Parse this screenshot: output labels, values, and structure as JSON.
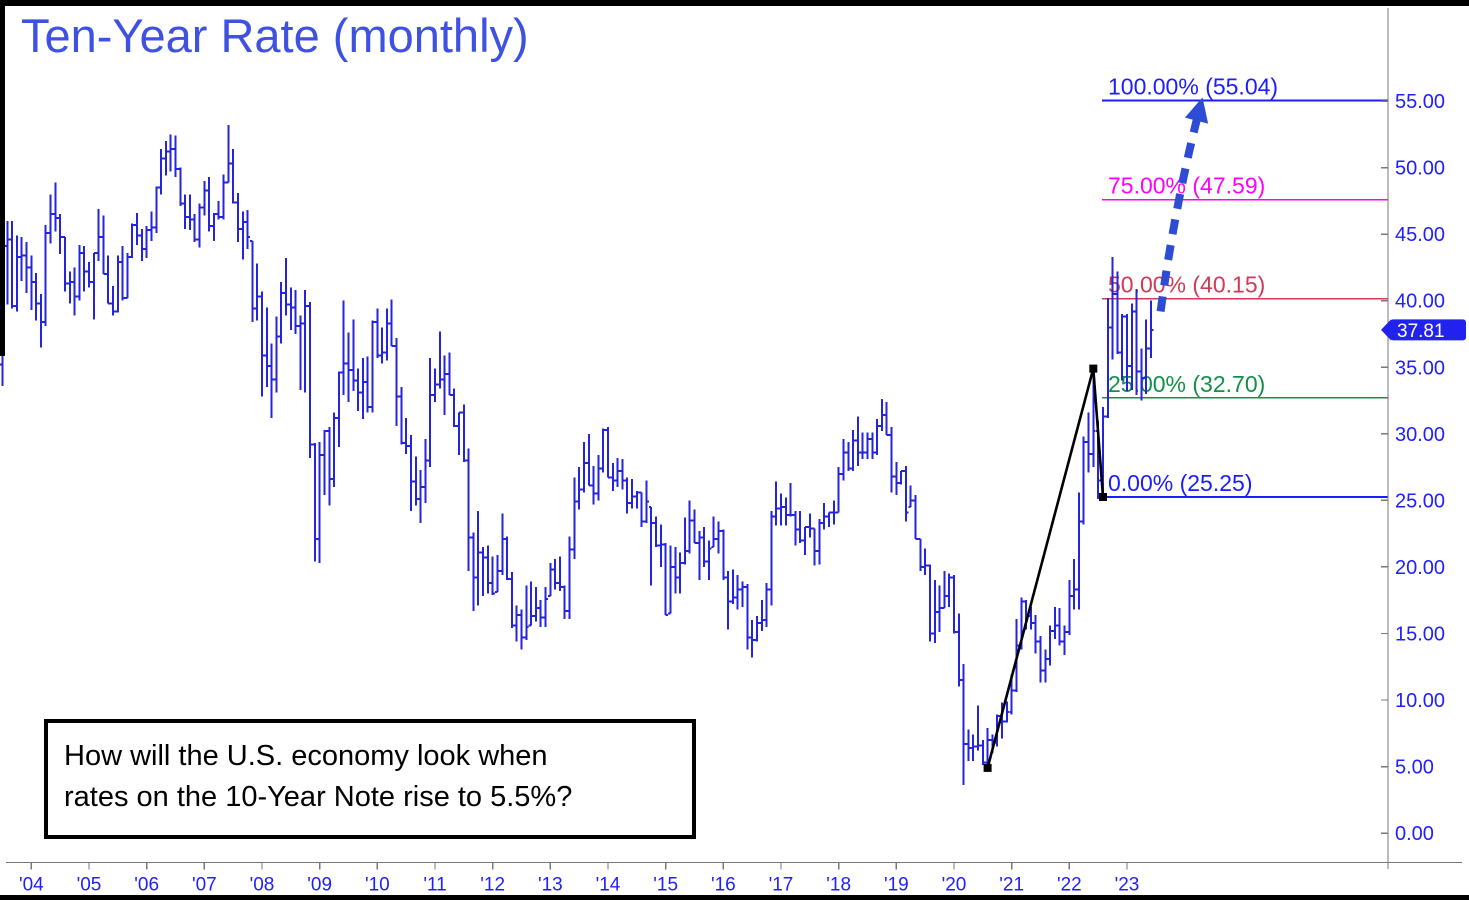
{
  "window": {
    "title": "Ten-Year Rate (monthly)"
  },
  "annotation_box": {
    "line1": "How will the U.S. economy look when",
    "line2": "rates on the 10-Year Note rise to 5.5%?"
  },
  "last_price_tag": "37.81",
  "colors": {
    "title_blue": "#3f51e1",
    "bar_blue": "#2424dd",
    "axis_gray": "#787878",
    "axis_label_blue": "#2020ff",
    "fib_blue": "#1c1cff",
    "fib_magenta": "#ff00ff",
    "fib_crimson": "#d03a56",
    "fib_green": "#129047",
    "arrow_blue": "#2e4bd4",
    "tag_bg": "#2222ee",
    "tag_text": "#ffffff",
    "trend_black": "#000000"
  },
  "chart_data": {
    "type": "ohlc-bar",
    "title": "Ten-Year Rate (monthly)",
    "xlabel": "",
    "ylabel": "",
    "frequency": "monthly",
    "start": {
      "year": 2003,
      "month": 7
    },
    "units": "yield x 10",
    "ylim": [
      0,
      55
    ],
    "grid": false,
    "x_tick_years": [
      2004,
      2005,
      2006,
      2007,
      2008,
      2009,
      2010,
      2011,
      2012,
      2013,
      2014,
      2015,
      2016,
      2017,
      2018,
      2019,
      2020,
      2021,
      2022,
      2023
    ],
    "x_tick_labels": [
      "'04",
      "'05",
      "'06",
      "'07",
      "'08",
      "'09",
      "'10",
      "'11",
      "'12",
      "'13",
      "'14",
      "'15",
      "'16",
      "'17",
      "'18",
      "'19",
      "'20",
      "'21",
      "'22",
      "'23"
    ],
    "y_ticks": [
      0,
      5,
      10,
      15,
      20,
      25,
      30,
      35,
      40,
      45,
      50,
      55
    ],
    "y_tick_labels": [
      "0.00",
      "5.00",
      "10.00",
      "15.00",
      "20.00",
      "25.00",
      "30.00",
      "35.00",
      "40.00",
      "45.00",
      "50.00",
      "55.00"
    ],
    "last_price": 37.81,
    "first_open": 35.2,
    "bars_hlc": [
      [
        44.9,
        33.6,
        44.1
      ],
      [
        46.0,
        39.7,
        44.6
      ],
      [
        46.0,
        39.4,
        39.6
      ],
      [
        44.9,
        39.2,
        43.3
      ],
      [
        44.8,
        41.5,
        43.4
      ],
      [
        44.4,
        40.6,
        42.5
      ],
      [
        43.4,
        39.3,
        41.4
      ],
      [
        42.1,
        38.5,
        39.8
      ],
      [
        40.5,
        36.5,
        38.4
      ],
      [
        45.7,
        38.1,
        45.1
      ],
      [
        48.0,
        44.3,
        46.5
      ],
      [
        48.9,
        45.2,
        46.2
      ],
      [
        46.5,
        43.5,
        44.8
      ],
      [
        44.8,
        40.7,
        41.3
      ],
      [
        42.2,
        39.8,
        41.4
      ],
      [
        42.5,
        38.9,
        40.3
      ],
      [
        44.2,
        40.0,
        43.6
      ],
      [
        44.1,
        40.7,
        42.2
      ],
      [
        42.9,
        41.0,
        41.4
      ],
      [
        43.6,
        38.6,
        43.6
      ],
      [
        46.9,
        43.0,
        44.8
      ],
      [
        46.4,
        42.0,
        42.0
      ],
      [
        43.4,
        39.8,
        39.8
      ],
      [
        41.1,
        38.9,
        39.2
      ],
      [
        43.4,
        39.1,
        42.9
      ],
      [
        44.1,
        40.0,
        40.2
      ],
      [
        43.6,
        40.2,
        43.3
      ],
      [
        45.8,
        43.2,
        45.7
      ],
      [
        46.6,
        44.2,
        44.9
      ],
      [
        45.4,
        43.0,
        43.9
      ],
      [
        45.6,
        43.2,
        45.3
      ],
      [
        46.7,
        44.5,
        45.5
      ],
      [
        48.6,
        45.1,
        48.5
      ],
      [
        51.4,
        48.0,
        50.7
      ],
      [
        52.0,
        49.4,
        51.2
      ],
      [
        52.5,
        49.7,
        51.4
      ],
      [
        52.4,
        49.3,
        49.9
      ],
      [
        50.0,
        47.1,
        47.3
      ],
      [
        48.0,
        45.4,
        46.3
      ],
      [
        48.0,
        45.3,
        46.1
      ],
      [
        46.5,
        44.4,
        44.6
      ],
      [
        47.3,
        44.0,
        47.0
      ],
      [
        49.0,
        46.4,
        48.3
      ],
      [
        49.3,
        45.2,
        45.6
      ],
      [
        46.6,
        44.5,
        46.5
      ],
      [
        47.5,
        46.1,
        46.3
      ],
      [
        49.5,
        46.1,
        48.9
      ],
      [
        53.2,
        48.9,
        50.3
      ],
      [
        51.4,
        47.3,
        47.4
      ],
      [
        48.1,
        44.4,
        45.4
      ],
      [
        46.7,
        43.1,
        45.9
      ],
      [
        46.8,
        43.9,
        44.8
      ],
      [
        44.5,
        38.4,
        39.4
      ],
      [
        42.8,
        38.5,
        40.3
      ],
      [
        40.7,
        32.8,
        35.9
      ],
      [
        39.5,
        33.5,
        35.1
      ],
      [
        36.8,
        31.2,
        34.1
      ],
      [
        38.8,
        33.1,
        37.3
      ],
      [
        41.4,
        36.8,
        40.6
      ],
      [
        43.2,
        38.9,
        39.7
      ],
      [
        41.0,
        37.8,
        39.5
      ],
      [
        40.8,
        37.5,
        38.1
      ],
      [
        38.9,
        33.3,
        38.3
      ],
      [
        40.8,
        33.1,
        39.6
      ],
      [
        39.9,
        28.2,
        29.2
      ],
      [
        29.3,
        20.4,
        22.1
      ],
      [
        29.4,
        20.3,
        28.4
      ],
      [
        30.3,
        25.4,
        30.2
      ],
      [
        30.5,
        24.6,
        26.6
      ],
      [
        31.6,
        26.0,
        31.2
      ],
      [
        34.7,
        29.0,
        34.6
      ],
      [
        40.0,
        32.9,
        35.3
      ],
      [
        37.6,
        32.4,
        34.8
      ],
      [
        38.6,
        33.2,
        34.0
      ],
      [
        34.9,
        31.7,
        33.1
      ],
      [
        35.7,
        31.1,
        33.9
      ],
      [
        35.8,
        31.6,
        32.0
      ],
      [
        38.5,
        31.6,
        38.4
      ],
      [
        39.4,
        35.7,
        35.9
      ],
      [
        38.0,
        35.3,
        36.1
      ],
      [
        39.4,
        35.5,
        38.3
      ],
      [
        40.1,
        36.6,
        36.6
      ],
      [
        37.2,
        30.6,
        32.8
      ],
      [
        33.5,
        29.2,
        29.3
      ],
      [
        31.2,
        28.5,
        29.1
      ],
      [
        29.9,
        24.2,
        26.4
      ],
      [
        28.3,
        24.6,
        25.1
      ],
      [
        27.3,
        23.3,
        26.0
      ],
      [
        29.6,
        24.8,
        28.0
      ],
      [
        35.7,
        27.5,
        32.9
      ],
      [
        34.9,
        32.4,
        33.7
      ],
      [
        37.7,
        33.4,
        34.1
      ],
      [
        35.9,
        31.4,
        34.5
      ],
      [
        36.1,
        32.9,
        32.9
      ],
      [
        33.4,
        30.5,
        30.6
      ],
      [
        31.6,
        28.4,
        31.6
      ],
      [
        32.2,
        27.9,
        28.0
      ],
      [
        28.9,
        19.7,
        22.2
      ],
      [
        22.6,
        16.7,
        19.2
      ],
      [
        24.2,
        17.1,
        21.1
      ],
      [
        21.5,
        17.8,
        20.7
      ],
      [
        21.6,
        18.0,
        18.8
      ],
      [
        20.8,
        17.9,
        18.0
      ],
      [
        20.9,
        18.1,
        19.7
      ],
      [
        24.0,
        19.4,
        22.1
      ],
      [
        22.3,
        19.0,
        19.1
      ],
      [
        19.6,
        15.4,
        15.6
      ],
      [
        17.1,
        14.4,
        16.4
      ],
      [
        16.8,
        13.8,
        14.7
      ],
      [
        18.6,
        14.5,
        15.5
      ],
      [
        18.9,
        15.6,
        16.3
      ],
      [
        18.5,
        15.9,
        16.9
      ],
      [
        17.5,
        15.5,
        16.2
      ],
      [
        18.5,
        15.5,
        17.6
      ],
      [
        20.3,
        17.8,
        19.8
      ],
      [
        20.6,
        18.3,
        18.8
      ],
      [
        20.8,
        18.2,
        18.5
      ],
      [
        18.6,
        16.1,
        16.7
      ],
      [
        22.3,
        16.1,
        21.3
      ],
      [
        26.7,
        20.6,
        24.9
      ],
      [
        27.5,
        24.3,
        25.8
      ],
      [
        29.4,
        25.6,
        27.8
      ],
      [
        30.0,
        26.1,
        26.1
      ],
      [
        27.6,
        24.7,
        25.5
      ],
      [
        28.4,
        25.0,
        27.4
      ],
      [
        30.4,
        27.1,
        30.3
      ],
      [
        30.5,
        26.7,
        26.7
      ],
      [
        27.8,
        25.7,
        26.5
      ],
      [
        28.2,
        26.0,
        27.2
      ],
      [
        28.1,
        25.8,
        26.5
      ],
      [
        26.7,
        24.0,
        24.8
      ],
      [
        26.6,
        24.4,
        25.3
      ],
      [
        25.7,
        24.4,
        25.6
      ],
      [
        25.6,
        23.0,
        23.4
      ],
      [
        26.5,
        23.3,
        24.9
      ],
      [
        24.5,
        18.6,
        23.3
      ],
      [
        23.8,
        21.5,
        21.6
      ],
      [
        23.2,
        20.0,
        21.7
      ],
      [
        21.8,
        16.4,
        16.4
      ],
      [
        21.6,
        16.5,
        20.0
      ],
      [
        21.5,
        18.0,
        19.2
      ],
      [
        21.1,
        18.0,
        20.3
      ],
      [
        23.7,
        20.2,
        21.2
      ],
      [
        25.0,
        21.0,
        23.5
      ],
      [
        24.3,
        21.8,
        21.8
      ],
      [
        22.7,
        19.0,
        22.2
      ],
      [
        23.0,
        20.0,
        20.4
      ],
      [
        22.0,
        19.0,
        21.4
      ],
      [
        23.8,
        21.5,
        22.1
      ],
      [
        23.4,
        21.0,
        22.7
      ],
      [
        22.8,
        19.0,
        19.2
      ],
      [
        19.7,
        15.3,
        17.4
      ],
      [
        19.8,
        17.2,
        17.7
      ],
      [
        19.4,
        16.8,
        18.3
      ],
      [
        18.9,
        17.0,
        18.5
      ],
      [
        18.7,
        13.8,
        14.7
      ],
      [
        16.0,
        13.2,
        14.5
      ],
      [
        16.3,
        14.4,
        15.8
      ],
      [
        17.5,
        15.2,
        16.0
      ],
      [
        18.8,
        15.5,
        18.3
      ],
      [
        24.2,
        17.1,
        23.8
      ],
      [
        26.4,
        23.1,
        24.4
      ],
      [
        25.5,
        23.1,
        24.5
      ],
      [
        25.2,
        23.1,
        23.9
      ],
      [
        26.3,
        23.8,
        23.9
      ],
      [
        24.2,
        21.6,
        22.8
      ],
      [
        24.2,
        21.8,
        22.0
      ],
      [
        23.0,
        20.9,
        23.0
      ],
      [
        24.0,
        22.2,
        22.9
      ],
      [
        22.9,
        20.1,
        21.2
      ],
      [
        23.6,
        20.2,
        23.3
      ],
      [
        24.8,
        22.8,
        23.8
      ],
      [
        24.1,
        23.0,
        24.1
      ],
      [
        25.0,
        23.2,
        24.1
      ],
      [
        27.5,
        24.1,
        27.0
      ],
      [
        29.6,
        26.5,
        28.6
      ],
      [
        29.4,
        27.2,
        27.4
      ],
      [
        30.3,
        27.2,
        29.5
      ],
      [
        31.3,
        27.6,
        28.6
      ],
      [
        30.1,
        28.1,
        28.6
      ],
      [
        30.1,
        28.1,
        29.6
      ],
      [
        30.1,
        28.1,
        28.6
      ],
      [
        31.1,
        28.4,
        30.6
      ],
      [
        32.6,
        30.2,
        31.4
      ],
      [
        32.4,
        29.9,
        29.9
      ],
      [
        30.5,
        25.6,
        26.8
      ],
      [
        27.9,
        25.4,
        26.3
      ],
      [
        27.2,
        26.2,
        27.2
      ],
      [
        27.6,
        23.4,
        24.1
      ],
      [
        26.1,
        24.5,
        25.0
      ],
      [
        25.4,
        22.1,
        22.1
      ],
      [
        22.1,
        19.7,
        20.0
      ],
      [
        21.4,
        19.4,
        20.1
      ],
      [
        20.2,
        14.4,
        15.0
      ],
      [
        19.0,
        14.3,
        16.6
      ],
      [
        18.6,
        15.1,
        16.9
      ],
      [
        19.7,
        16.9,
        17.8
      ],
      [
        19.5,
        17.0,
        19.2
      ],
      [
        19.4,
        15.0,
        15.1
      ],
      [
        16.5,
        11.0,
        11.5
      ],
      [
        12.7,
        3.6,
        6.7
      ],
      [
        7.8,
        5.4,
        6.4
      ],
      [
        7.4,
        5.4,
        6.5
      ],
      [
        9.6,
        6.2,
        6.6
      ],
      [
        7.0,
        5.1,
        5.3
      ],
      [
        7.9,
        4.8,
        7.0
      ],
      [
        7.4,
        6.0,
        6.8
      ],
      [
        8.9,
        6.5,
        8.8
      ],
      [
        9.8,
        7.1,
        8.4
      ],
      [
        9.9,
        8.3,
        9.1
      ],
      [
        11.9,
        8.9,
        10.7
      ],
      [
        16.1,
        10.6,
        14.1
      ],
      [
        17.7,
        13.8,
        17.4
      ],
      [
        17.5,
        15.3,
        16.3
      ],
      [
        17.0,
        15.3,
        15.8
      ],
      [
        16.4,
        13.5,
        14.4
      ],
      [
        14.8,
        11.3,
        12.2
      ],
      [
        13.8,
        11.3,
        13.1
      ],
      [
        15.6,
        12.6,
        15.2
      ],
      [
        17.0,
        14.6,
        15.6
      ],
      [
        16.9,
        14.1,
        14.4
      ],
      [
        15.6,
        13.4,
        15.1
      ],
      [
        19.0,
        14.9,
        17.8
      ],
      [
        20.6,
        16.8,
        18.3
      ],
      [
        25.6,
        16.8,
        23.4
      ],
      [
        29.8,
        23.2,
        29.4
      ],
      [
        31.6,
        27.1,
        28.5
      ],
      [
        34.9,
        27.5,
        30.2
      ],
      [
        31.0,
        25.1,
        26.5
      ],
      [
        32.0,
        25.2,
        31.3
      ],
      [
        40.2,
        31.2,
        38.0
      ],
      [
        43.3,
        35.6,
        40.5
      ],
      [
        42.2,
        36.0,
        36.1
      ],
      [
        39.0,
        34.0,
        38.8
      ],
      [
        39.0,
        33.2,
        35.1
      ],
      [
        39.8,
        33.3,
        39.2
      ],
      [
        40.9,
        32.9,
        34.7
      ],
      [
        36.4,
        32.5,
        34.2
      ],
      [
        38.6,
        33.0,
        36.4
      ],
      [
        40.0,
        35.7,
        37.8
      ]
    ],
    "fib_levels": [
      {
        "pct": "100.00%",
        "value": 55.04,
        "label": "100.00% (55.04)",
        "color": "#1c1cff"
      },
      {
        "pct": "75.00%",
        "value": 47.59,
        "label": "75.00% (47.59)",
        "color": "#ff00ff"
      },
      {
        "pct": "50.00%",
        "value": 40.15,
        "label": "50.00% (40.15)",
        "color": "#d03a56"
      },
      {
        "pct": "25.00%",
        "value": 32.7,
        "label": "25.00% (32.70)",
        "color": "#129047"
      },
      {
        "pct": "0.00%",
        "value": 25.25,
        "label": "0.00% (25.25)",
        "color": "#1c1cff"
      }
    ],
    "trendline_points": [
      {
        "month": "2020-08",
        "value": 4.9
      },
      {
        "month": "2022-06",
        "value": 34.9
      },
      {
        "month": "2022-08",
        "value": 25.25
      }
    ],
    "projection_arrow": {
      "start": {
        "month_index": 241,
        "value": 39.2
      },
      "bend": {
        "month_index": 244,
        "value": 47.3
      },
      "end": {
        "month_index": 249.3,
        "value": 54.7
      }
    },
    "legend": null
  }
}
